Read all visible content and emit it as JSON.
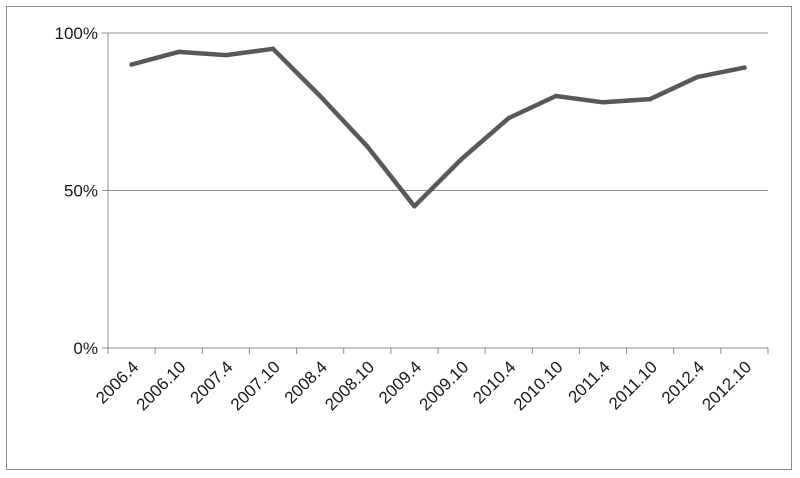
{
  "chart_data": {
    "type": "line",
    "title": "",
    "xlabel": "",
    "ylabel": "",
    "categories": [
      "2006.4",
      "2006.10",
      "2007.4",
      "2007.10",
      "2008.4",
      "2008.10",
      "2009.4",
      "2009.10",
      "2010.4",
      "2010.10",
      "2011.4",
      "2011.10",
      "2012.4",
      "2012.10"
    ],
    "series": [
      {
        "values": [
          90,
          94,
          93,
          95,
          80,
          64,
          45,
          60,
          73,
          80,
          78,
          79,
          86,
          89
        ]
      }
    ],
    "ylim": [
      0,
      100
    ],
    "y_ticks": [
      "0%",
      "50%",
      "100%"
    ],
    "y_tick_values": [
      0,
      50,
      100
    ],
    "grid": true,
    "legend": "none",
    "line_color": "#595959"
  }
}
